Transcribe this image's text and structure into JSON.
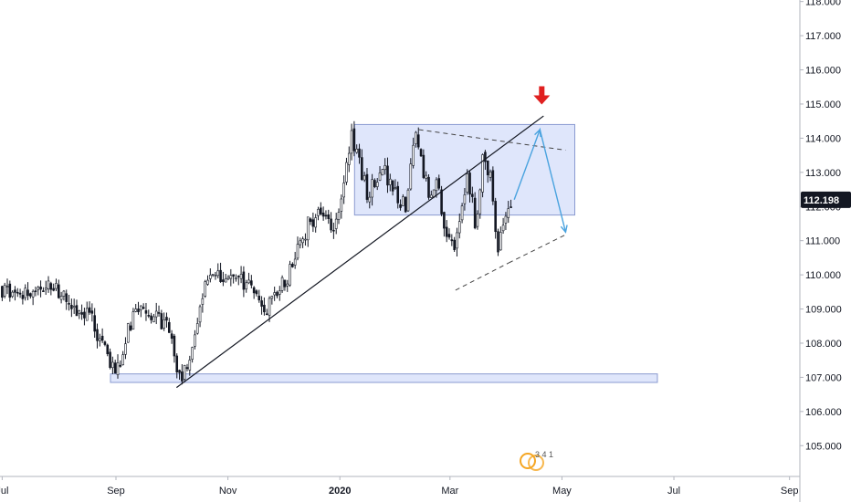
{
  "chart_data": {
    "type": "candlestick",
    "x_axis": {
      "ticks": [
        {
          "label": "Jul",
          "day": -62,
          "bold": false
        },
        {
          "label": "Sep",
          "day": 0,
          "bold": false
        },
        {
          "label": "Nov",
          "day": 61,
          "bold": false
        },
        {
          "label": "2020",
          "day": 122,
          "bold": true
        },
        {
          "label": "Mar",
          "day": 182,
          "bold": false
        },
        {
          "label": "May",
          "day": 243,
          "bold": false
        },
        {
          "label": "Jul",
          "day": 304,
          "bold": false
        },
        {
          "label": "Sep",
          "day": 367,
          "bold": false
        }
      ]
    },
    "y_axis": {
      "side": "right",
      "ticks": [
        "105.000",
        "106.000",
        "107.000",
        "108.000",
        "109.000",
        "110.000",
        "111.000",
        "112.000",
        "113.000",
        "114.000",
        "115.000",
        "116.000",
        "117.000",
        "118.000"
      ]
    },
    "last_price": {
      "value": 112.198,
      "label": "112.198",
      "color": "#131722"
    },
    "series_path": [
      {
        "day": -62,
        "value": 109.6
      },
      {
        "day": -50,
        "value": 109.4
      },
      {
        "day": -40,
        "value": 109.8
      },
      {
        "day": -30,
        "value": 109.5
      },
      {
        "day": -22,
        "value": 109.0
      },
      {
        "day": -14,
        "value": 108.7
      },
      {
        "day": -8,
        "value": 108.1
      },
      {
        "day": -2,
        "value": 107.3
      },
      {
        "day": 2,
        "value": 107.5
      },
      {
        "day": 6,
        "value": 108.4
      },
      {
        "day": 12,
        "value": 109.0
      },
      {
        "day": 20,
        "value": 108.9
      },
      {
        "day": 28,
        "value": 108.5
      },
      {
        "day": 33,
        "value": 107.4
      },
      {
        "day": 37,
        "value": 107.0
      },
      {
        "day": 42,
        "value": 108.2
      },
      {
        "day": 48,
        "value": 109.6
      },
      {
        "day": 55,
        "value": 109.9
      },
      {
        "day": 63,
        "value": 109.7
      },
      {
        "day": 72,
        "value": 109.8
      },
      {
        "day": 80,
        "value": 109.0
      },
      {
        "day": 88,
        "value": 109.4
      },
      {
        "day": 96,
        "value": 110.3
      },
      {
        "day": 104,
        "value": 111.4
      },
      {
        "day": 112,
        "value": 112.0
      },
      {
        "day": 119,
        "value": 111.4
      },
      {
        "day": 124,
        "value": 112.6
      },
      {
        "day": 128,
        "value": 114.2
      },
      {
        "day": 132,
        "value": 113.4
      },
      {
        "day": 137,
        "value": 112.4
      },
      {
        "day": 142,
        "value": 112.8
      },
      {
        "day": 147,
        "value": 113.0
      },
      {
        "day": 152,
        "value": 112.3
      },
      {
        "day": 158,
        "value": 112.0
      },
      {
        "day": 163,
        "value": 114.1
      },
      {
        "day": 167,
        "value": 113.3
      },
      {
        "day": 171,
        "value": 112.0
      },
      {
        "day": 175,
        "value": 112.8
      },
      {
        "day": 180,
        "value": 111.2
      },
      {
        "day": 184,
        "value": 110.6
      },
      {
        "day": 188,
        "value": 111.8
      },
      {
        "day": 192,
        "value": 112.9
      },
      {
        "day": 196,
        "value": 111.5
      },
      {
        "day": 200,
        "value": 113.6
      },
      {
        "day": 204,
        "value": 112.9
      },
      {
        "day": 208,
        "value": 110.8
      },
      {
        "day": 212,
        "value": 111.6
      },
      {
        "day": 216,
        "value": 112.2
      }
    ],
    "drawings": {
      "resistance_box": {
        "day_from": 130,
        "day_to": 250,
        "value_from": 111.75,
        "value_to": 114.4,
        "fill": "#dfe6fb",
        "stroke": "#8a9ad0"
      },
      "support_box": {
        "day_from": -3,
        "day_to": 295,
        "value_from": 106.85,
        "value_to": 107.1,
        "fill": "#dfe6fb",
        "stroke": "#8a9ad0"
      },
      "trendline": {
        "from": {
          "day": 33,
          "value": 106.7
        },
        "to": {
          "day": 233,
          "value": 114.65
        },
        "color": "#131722"
      },
      "dashed_upper": {
        "from": {
          "day": 165,
          "value": 114.25
        },
        "to": {
          "day": 245,
          "value": 113.65
        },
        "color": "#444444"
      },
      "dashed_lower_1": {
        "from": {
          "day": 185,
          "value": 109.55
        },
        "to": {
          "day": 214,
          "value": 110.35
        },
        "color": "#444444"
      },
      "dashed_lower_2": {
        "from": {
          "day": 214,
          "value": 110.35
        },
        "to": {
          "day": 246,
          "value": 111.2
        },
        "color": "#444444"
      },
      "projection": {
        "points": [
          {
            "day": 217,
            "value": 112.2
          },
          {
            "day": 231,
            "value": 114.25
          },
          {
            "day": 245,
            "value": 111.25
          }
        ],
        "color": "#4aa3df"
      },
      "down_arrow": {
        "day": 232,
        "value": 115.2,
        "color": "#e02020"
      }
    },
    "watermark": {
      "text": "3 4 1",
      "color": "#f5a623"
    }
  }
}
